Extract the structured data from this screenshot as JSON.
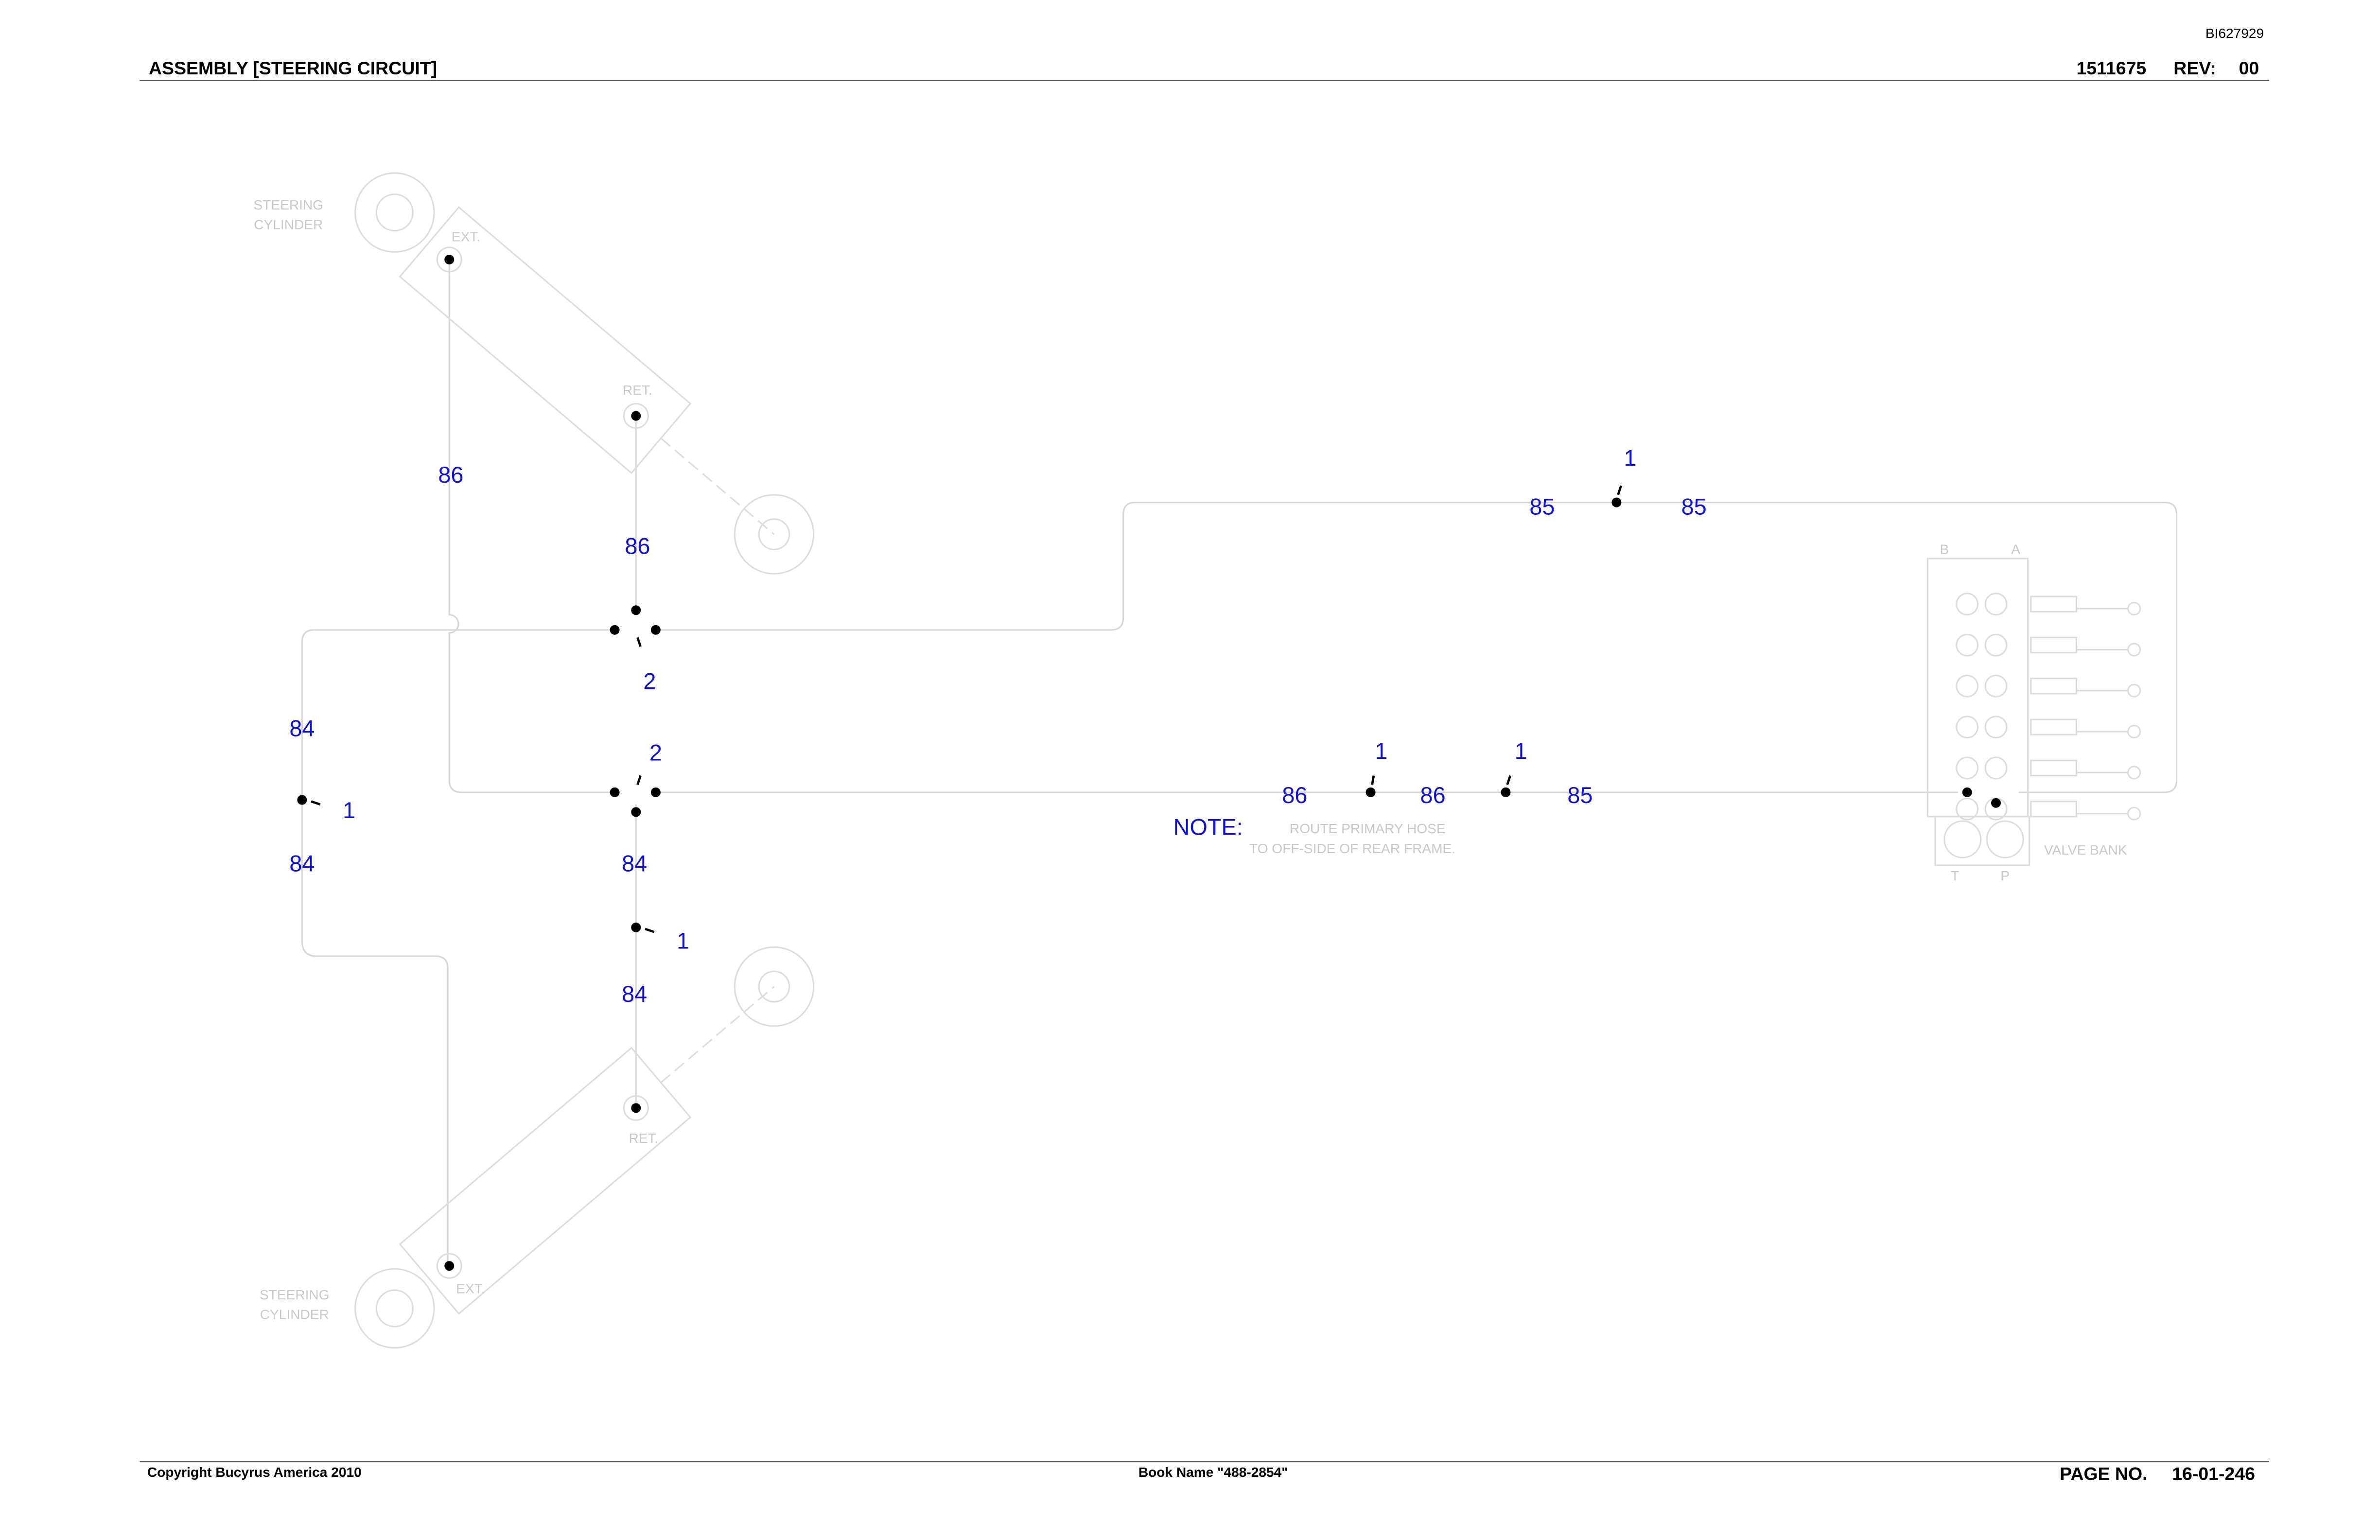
{
  "header": {
    "doc_id": "BI627929",
    "title": "ASSEMBLY [STEERING CIRCUIT]",
    "part_number": "1511675",
    "rev_label": "REV:",
    "rev": "00"
  },
  "drawing": {
    "callouts": [
      "86",
      "86",
      "2",
      "84",
      "1",
      "84",
      "2",
      "84",
      "1",
      "84",
      "1",
      "85",
      "85",
      "1",
      "1",
      "86",
      "86",
      "85"
    ],
    "note": "NOTE:",
    "note_text": [
      "ROUTE PRIMARY HOSE",
      "TO OFF-SIDE OF REAR FRAME."
    ],
    "component_labels": [
      "STEERING",
      "CYLINDER",
      "EXT.",
      "RET.",
      "RET.",
      "EXT.",
      "STEERING",
      "CYLINDER",
      "VALVE BANK",
      "B",
      "A",
      "T",
      "P"
    ]
  },
  "footer": {
    "copyright": "Copyright Bucyrus America 2010",
    "book_name": "Book Name \"488-2854\"",
    "page_label": "PAGE NO.",
    "page_number": "16-01-246"
  }
}
